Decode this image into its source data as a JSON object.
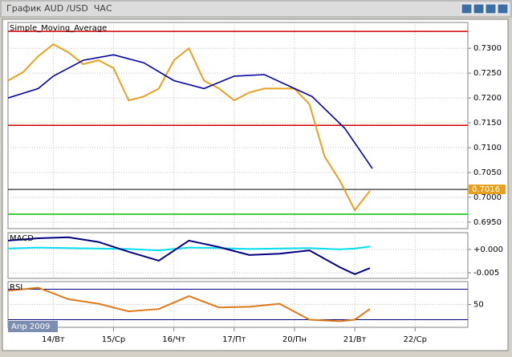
{
  "window_title": "График AUD /USD  ЧАС",
  "chart_data": [
    {
      "type": "line",
      "xlim": [
        -18,
        165
      ],
      "ylim": [
        0.6937,
        0.7352
      ],
      "yticks": [
        {
          "value": 0.73,
          "label": "0.7300"
        },
        {
          "value": 0.725,
          "label": "0.7250"
        },
        {
          "value": 0.72,
          "label": "0.7200"
        },
        {
          "value": 0.715,
          "label": "0.7150"
        },
        {
          "value": 0.71,
          "label": "0.7100"
        },
        {
          "value": 0.705,
          "label": "0.7050"
        },
        {
          "value": 0.7,
          "label": "0.7000"
        },
        {
          "value": 0.695,
          "label": "0.6950"
        }
      ],
      "hlines": [
        {
          "value": 0.7334,
          "color": "#d00000"
        },
        {
          "value": 0.7145,
          "color": "#d00000"
        },
        {
          "value": 0.6966,
          "color": "#00c000"
        }
      ],
      "last_price": {
        "value": 0.7016,
        "label": "0.7016",
        "color": "#e8a020"
      },
      "series": [
        {
          "color": "#e8a020",
          "x": [
            -18,
            -12,
            -6,
            0,
            6,
            12,
            18,
            24,
            30,
            36,
            42,
            48,
            54,
            60,
            66,
            72,
            78,
            84,
            90,
            96,
            102,
            108,
            114,
            120,
            126
          ],
          "values": [
            0.7235,
            0.7252,
            0.7284,
            0.7308,
            0.7292,
            0.7268,
            0.7276,
            0.726,
            0.7195,
            0.7203,
            0.7219,
            0.7276,
            0.73,
            0.7235,
            0.7219,
            0.7195,
            0.7211,
            0.7219,
            0.7219,
            0.7219,
            0.7187,
            0.7082,
            0.7034,
            0.6974,
            0.7013
          ]
        },
        {
          "name": "Simple_Moving_Average",
          "color": "#0000a0",
          "x": [
            -18,
            -6,
            0,
            12,
            24,
            36,
            48,
            60,
            72,
            84,
            96,
            103,
            116,
            127
          ],
          "values": [
            0.72,
            0.7219,
            0.7244,
            0.7276,
            0.7287,
            0.7271,
            0.7235,
            0.7219,
            0.7244,
            0.7247,
            0.7219,
            0.7203,
            0.7139,
            0.7058
          ]
        }
      ]
    },
    {
      "type": "line",
      "xlim": [
        -18,
        165
      ],
      "ylim": [
        -0.0062,
        0.0036
      ],
      "yticks": [
        {
          "value": 0,
          "label": "+0.000"
        },
        {
          "value": -0.005,
          "label": "-0.005"
        }
      ],
      "series": [
        {
          "color": "#00e0f0",
          "x": [
            -18,
            -6,
            6,
            18,
            30,
            42,
            54,
            66,
            78,
            90,
            102,
            114,
            120,
            126
          ],
          "values": [
            0.0002,
            0.0004,
            0.0003,
            0.0002,
            0.0001,
            -0.0002,
            0.0004,
            0.0003,
            0.0001,
            0.0002,
            0.0003,
            0,
            0.0002,
            0.0006
          ]
        },
        {
          "name": "MACD",
          "color": "#000080",
          "x": [
            -18,
            -6,
            6,
            18,
            30,
            42,
            54,
            66,
            78,
            90,
            102,
            114,
            120,
            126
          ],
          "values": [
            0.0019,
            0.0024,
            0.0026,
            0.0016,
            -0.0005,
            -0.0024,
            0.0019,
            0.0005,
            -0.0012,
            -0.0009,
            -0.0002,
            -0.0038,
            -0.0053,
            -0.004
          ]
        }
      ]
    },
    {
      "type": "line",
      "xlim": [
        -18,
        165
      ],
      "ylim": [
        20,
        80
      ],
      "yticks": [
        50
      ],
      "hlines": [
        {
          "value": 70,
          "color": "#000080"
        },
        {
          "value": 30,
          "color": "#000080"
        }
      ],
      "xticks": [
        {
          "value": 0,
          "label": "14/Вт"
        },
        {
          "value": 24,
          "label": "15/Ср"
        },
        {
          "value": 48,
          "label": "16/Чт"
        },
        {
          "value": 72,
          "label": "17/Пт"
        },
        {
          "value": 96,
          "label": "20/Пн"
        },
        {
          "value": 120,
          "label": "21/Вт"
        },
        {
          "value": 144,
          "label": "22/Ср"
        }
      ],
      "annotation": "Апр 2009",
      "series": [
        {
          "name": "RSI",
          "color": "#e07818",
          "x": [
            -18,
            -6,
            6,
            18,
            30,
            42,
            54,
            66,
            78,
            90,
            102,
            114,
            120,
            126
          ],
          "values": [
            68,
            72,
            57,
            51,
            41,
            44,
            61,
            46,
            47,
            51,
            30,
            28,
            30,
            44
          ]
        }
      ]
    }
  ]
}
